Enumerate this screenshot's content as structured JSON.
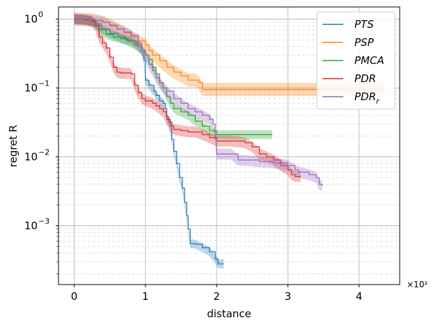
{
  "chart_data": {
    "type": "line",
    "xlabel": "distance",
    "ylabel": "regret R",
    "x_offset_label": "×10²",
    "xlim": [
      -0.22,
      4.57
    ],
    "ylim": [
      0.00014,
      1.5
    ],
    "yscale": "log",
    "grid": true,
    "legend_position": "top-right",
    "x_ticks": [
      {
        "value": 0,
        "label": "0"
      },
      {
        "value": 1,
        "label": "1"
      },
      {
        "value": 2,
        "label": "2"
      },
      {
        "value": 3,
        "label": "3"
      },
      {
        "value": 4,
        "label": "4"
      }
    ],
    "y_ticks": [
      {
        "value": 1,
        "base": "10",
        "exp": "0"
      },
      {
        "value": 0.1,
        "base": "10",
        "exp": "−1"
      },
      {
        "value": 0.01,
        "base": "10",
        "exp": "−2"
      },
      {
        "value": 0.001,
        "base": "10",
        "exp": "−3"
      }
    ],
    "series": [
      {
        "name": "PTS",
        "color": "#1f77b4",
        "legend_sub": "",
        "points": [
          [
            0,
            1
          ],
          [
            0.12,
            0.98
          ],
          [
            0.22,
            0.95
          ],
          [
            0.3,
            0.85
          ],
          [
            0.38,
            0.72
          ],
          [
            0.5,
            0.62
          ],
          [
            0.62,
            0.55
          ],
          [
            0.72,
            0.5
          ],
          [
            0.8,
            0.48
          ],
          [
            0.88,
            0.42
          ],
          [
            0.95,
            0.35
          ],
          [
            0.98,
            0.25
          ],
          [
            1.0,
            0.13
          ],
          [
            1.05,
            0.11
          ],
          [
            1.12,
            0.09
          ],
          [
            1.15,
            0.078
          ],
          [
            1.2,
            0.065
          ],
          [
            1.25,
            0.06
          ],
          [
            1.28,
            0.05
          ],
          [
            1.3,
            0.038
          ],
          [
            1.33,
            0.032
          ],
          [
            1.37,
            0.018
          ],
          [
            1.4,
            0.012
          ],
          [
            1.44,
            0.008
          ],
          [
            1.48,
            0.005
          ],
          [
            1.52,
            0.0035
          ],
          [
            1.55,
            0.0022
          ],
          [
            1.58,
            0.0014
          ],
          [
            1.6,
            0.0009
          ],
          [
            1.63,
            0.00055
          ],
          [
            1.7,
            0.00054
          ],
          [
            1.8,
            0.00048
          ],
          [
            1.9,
            0.00042
          ],
          [
            1.98,
            0.00033
          ],
          [
            2.02,
            0.00028
          ],
          [
            2.1,
            0.00028
          ]
        ],
        "band": 0.16
      },
      {
        "name": "PSP",
        "color": "#ff7f0e",
        "legend_sub": "",
        "points": [
          [
            0,
            1
          ],
          [
            0.2,
            0.98
          ],
          [
            0.3,
            0.95
          ],
          [
            0.4,
            0.9
          ],
          [
            0.5,
            0.82
          ],
          [
            0.6,
            0.72
          ],
          [
            0.7,
            0.63
          ],
          [
            0.8,
            0.55
          ],
          [
            0.9,
            0.48
          ],
          [
            1.0,
            0.42
          ],
          [
            1.05,
            0.35
          ],
          [
            1.1,
            0.3
          ],
          [
            1.2,
            0.25
          ],
          [
            1.3,
            0.2
          ],
          [
            1.4,
            0.17
          ],
          [
            1.5,
            0.15
          ],
          [
            1.6,
            0.13
          ],
          [
            1.7,
            0.13
          ],
          [
            1.75,
            0.12
          ],
          [
            1.8,
            0.095
          ],
          [
            2.0,
            0.095
          ],
          [
            2.5,
            0.095
          ],
          [
            3.0,
            0.095
          ],
          [
            3.5,
            0.095
          ],
          [
            4.0,
            0.095
          ],
          [
            4.35,
            0.095
          ]
        ],
        "band": 0.25
      },
      {
        "name": "PMCA",
        "color": "#2ca02c",
        "legend_sub": "",
        "points": [
          [
            0,
            1
          ],
          [
            0.15,
            0.98
          ],
          [
            0.25,
            0.93
          ],
          [
            0.3,
            0.85
          ],
          [
            0.35,
            0.7
          ],
          [
            0.45,
            0.6
          ],
          [
            0.55,
            0.55
          ],
          [
            0.65,
            0.52
          ],
          [
            0.75,
            0.48
          ],
          [
            0.85,
            0.42
          ],
          [
            0.95,
            0.35
          ],
          [
            1.0,
            0.3
          ],
          [
            1.05,
            0.26
          ],
          [
            1.1,
            0.2
          ],
          [
            1.15,
            0.16
          ],
          [
            1.2,
            0.12
          ],
          [
            1.25,
            0.1
          ],
          [
            1.3,
            0.075
          ],
          [
            1.35,
            0.06
          ],
          [
            1.4,
            0.05
          ],
          [
            1.5,
            0.045
          ],
          [
            1.6,
            0.04
          ],
          [
            1.7,
            0.033
          ],
          [
            1.8,
            0.028
          ],
          [
            1.9,
            0.024
          ],
          [
            2.0,
            0.021
          ],
          [
            2.2,
            0.021
          ],
          [
            2.5,
            0.021
          ],
          [
            2.78,
            0.021
          ]
        ],
        "band": 0.16
      },
      {
        "name": "PDR",
        "color": "#d62728",
        "legend_sub": "",
        "points": [
          [
            0,
            1
          ],
          [
            0.15,
            0.98
          ],
          [
            0.25,
            0.92
          ],
          [
            0.3,
            0.8
          ],
          [
            0.35,
            0.55
          ],
          [
            0.4,
            0.45
          ],
          [
            0.45,
            0.38
          ],
          [
            0.5,
            0.28
          ],
          [
            0.55,
            0.2
          ],
          [
            0.6,
            0.17
          ],
          [
            0.65,
            0.165
          ],
          [
            0.8,
            0.16
          ],
          [
            0.85,
            0.11
          ],
          [
            0.9,
            0.085
          ],
          [
            0.95,
            0.07
          ],
          [
            1.0,
            0.065
          ],
          [
            1.1,
            0.06
          ],
          [
            1.15,
            0.055
          ],
          [
            1.2,
            0.05
          ],
          [
            1.25,
            0.045
          ],
          [
            1.3,
            0.035
          ],
          [
            1.35,
            0.028
          ],
          [
            1.4,
            0.025
          ],
          [
            1.5,
            0.024
          ],
          [
            1.6,
            0.023
          ],
          [
            1.7,
            0.023
          ],
          [
            1.8,
            0.021
          ],
          [
            1.9,
            0.019
          ],
          [
            2.0,
            0.017
          ],
          [
            2.2,
            0.017
          ],
          [
            2.4,
            0.016
          ],
          [
            2.5,
            0.014
          ],
          [
            2.6,
            0.011
          ],
          [
            2.7,
            0.01
          ],
          [
            2.8,
            0.009
          ],
          [
            2.9,
            0.0075
          ],
          [
            3.0,
            0.0065
          ],
          [
            3.05,
            0.0055
          ],
          [
            3.1,
            0.0052
          ],
          [
            3.18,
            0.0052
          ]
        ],
        "band": 0.2
      },
      {
        "name": "PDR",
        "color": "#9467bd",
        "legend_sub": "r",
        "points": [
          [
            0,
            1
          ],
          [
            0.2,
            0.98
          ],
          [
            0.3,
            0.95
          ],
          [
            0.4,
            0.9
          ],
          [
            0.5,
            0.8
          ],
          [
            0.6,
            0.72
          ],
          [
            0.7,
            0.65
          ],
          [
            0.8,
            0.58
          ],
          [
            0.9,
            0.45
          ],
          [
            0.95,
            0.35
          ],
          [
            1.0,
            0.3
          ],
          [
            1.05,
            0.22
          ],
          [
            1.1,
            0.18
          ],
          [
            1.15,
            0.14
          ],
          [
            1.2,
            0.12
          ],
          [
            1.25,
            0.1
          ],
          [
            1.3,
            0.09
          ],
          [
            1.4,
            0.07
          ],
          [
            1.5,
            0.06
          ],
          [
            1.6,
            0.05
          ],
          [
            1.7,
            0.045
          ],
          [
            1.8,
            0.04
          ],
          [
            1.9,
            0.035
          ],
          [
            1.95,
            0.03
          ],
          [
            1.98,
            0.018
          ],
          [
            2.0,
            0.011
          ],
          [
            2.2,
            0.011
          ],
          [
            2.3,
            0.009
          ],
          [
            2.6,
            0.0085
          ],
          [
            2.8,
            0.0082
          ],
          [
            3.0,
            0.0075
          ],
          [
            3.1,
            0.0065
          ],
          [
            3.15,
            0.006
          ],
          [
            3.3,
            0.0055
          ],
          [
            3.4,
            0.005
          ],
          [
            3.44,
            0.004
          ],
          [
            3.48,
            0.0038
          ]
        ],
        "band": 0.2
      }
    ]
  }
}
